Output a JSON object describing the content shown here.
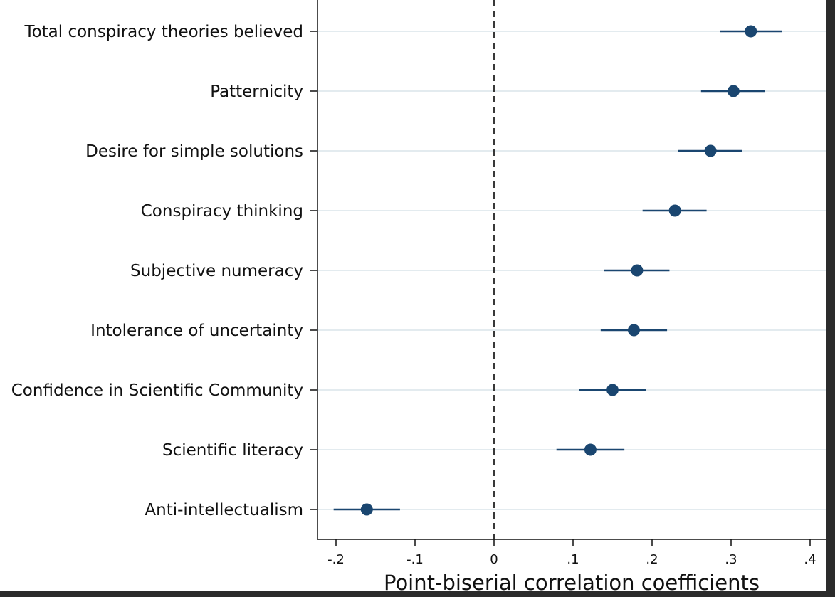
{
  "chart_data": {
    "type": "scatter",
    "title": "",
    "xlabel": "Point-biserial correlation coefficients",
    "ylabel": "",
    "xlim": [
      -0.205,
      0.41
    ],
    "xticks": [
      -0.2,
      -0.1,
      0,
      0.1,
      0.2,
      0.3,
      0.4
    ],
    "xtick_labels": [
      "-.2",
      "-.1",
      "0",
      ".1",
      ".2",
      ".3",
      ".4"
    ],
    "reference_line_x": 0,
    "grid": "horizontal",
    "categories": [
      "Total conspiracy theories believed",
      "Patternicity",
      "Desire for simple solutions",
      "Conspiracy thinking",
      "Subjective numeracy",
      "Intolerance of uncertainty",
      "Confidence in Scientific Community",
      "Scientific literacy",
      "Anti-intellectualism"
    ],
    "series": [
      {
        "values": [
          0.325,
          0.303,
          0.274,
          0.229,
          0.181,
          0.177,
          0.15,
          0.122,
          -0.161
        ],
        "ci_low": [
          0.286,
          0.262,
          0.233,
          0.188,
          0.139,
          0.135,
          0.108,
          0.079,
          -0.203
        ],
        "ci_high": [
          0.364,
          0.343,
          0.314,
          0.269,
          0.222,
          0.219,
          0.192,
          0.165,
          -0.119
        ]
      }
    ],
    "colors": {
      "marker": "#1a4670",
      "grid": "#e3ebef",
      "axis": "#111111"
    }
  }
}
